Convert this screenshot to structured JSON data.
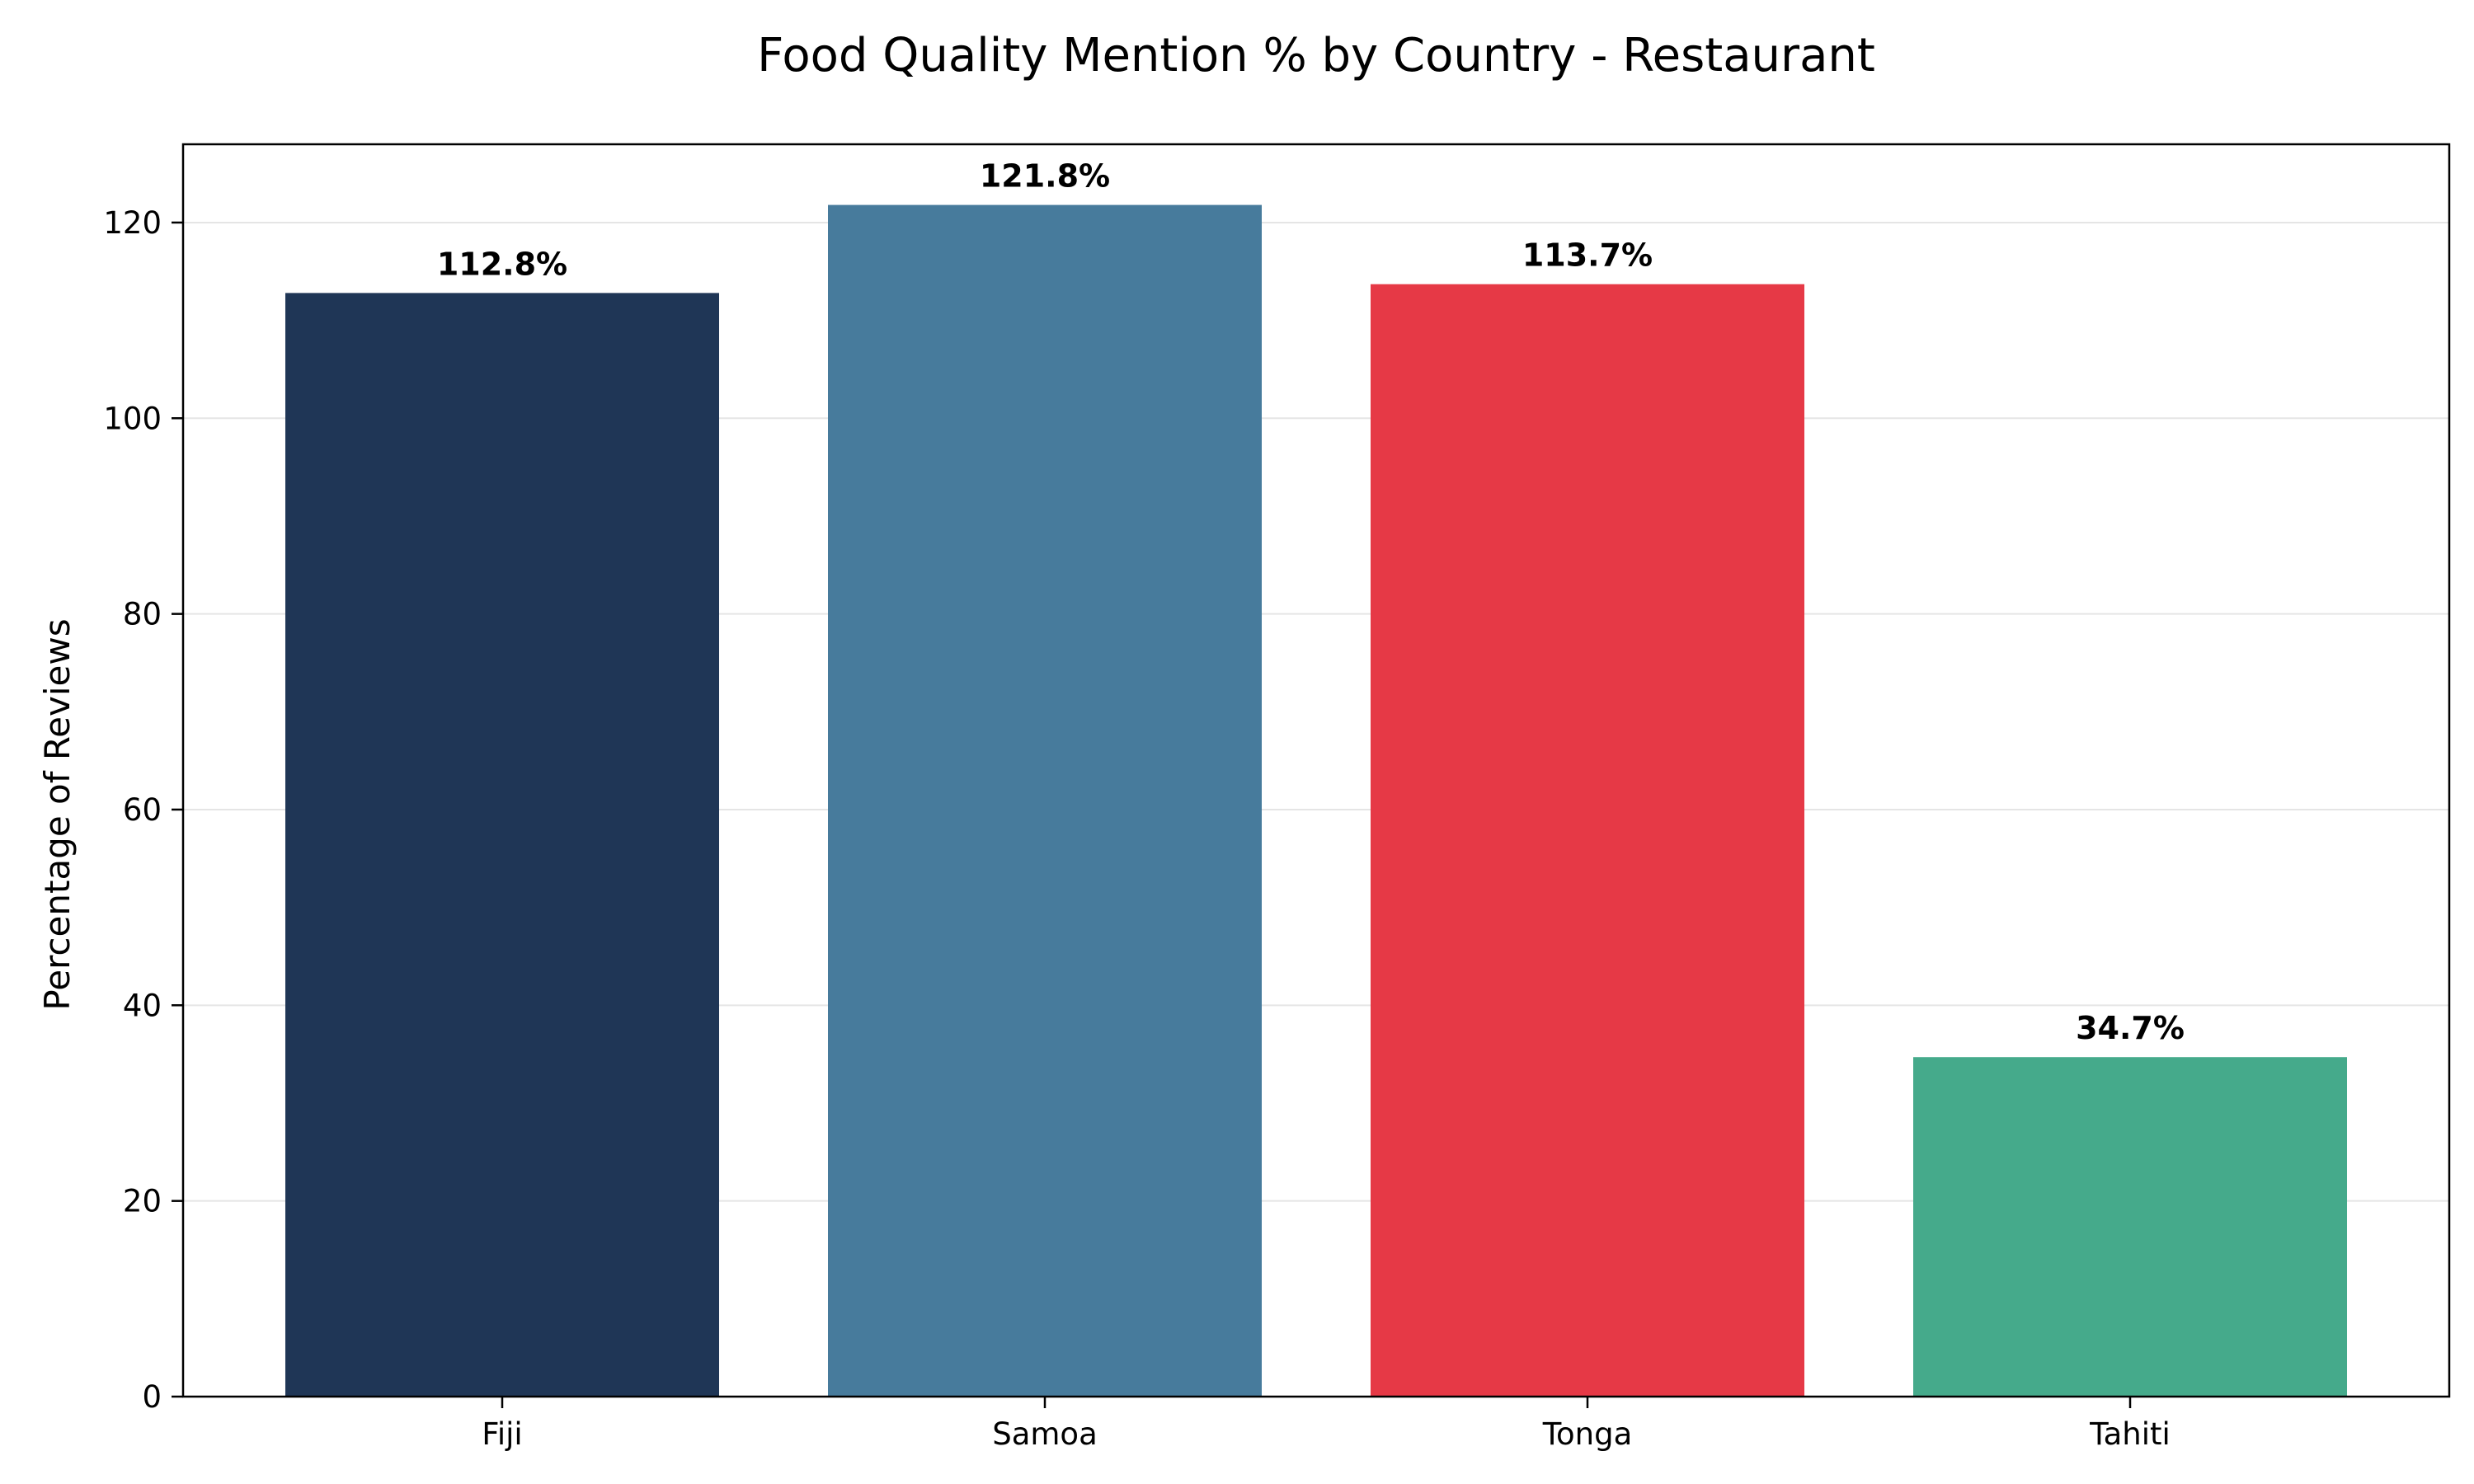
{
  "chart_data": {
    "type": "bar",
    "title": "Food Quality Mention % by Country - Restaurant",
    "xlabel": "",
    "ylabel": "Percentage of Reviews",
    "categories": [
      "Fiji",
      "Samoa",
      "Tonga",
      "Tahiti"
    ],
    "values": [
      112.8,
      121.8,
      113.7,
      34.7
    ],
    "value_labels": [
      "112.8%",
      "121.8%",
      "113.7%",
      "34.7%"
    ],
    "colors": [
      "#1f3656",
      "#477b9c",
      "#e63946",
      "#45aa8b"
    ],
    "ylim": [
      0,
      128
    ],
    "yticks": [
      0,
      20,
      40,
      60,
      80,
      100,
      120
    ],
    "grid": "y-major",
    "legend": "none"
  }
}
